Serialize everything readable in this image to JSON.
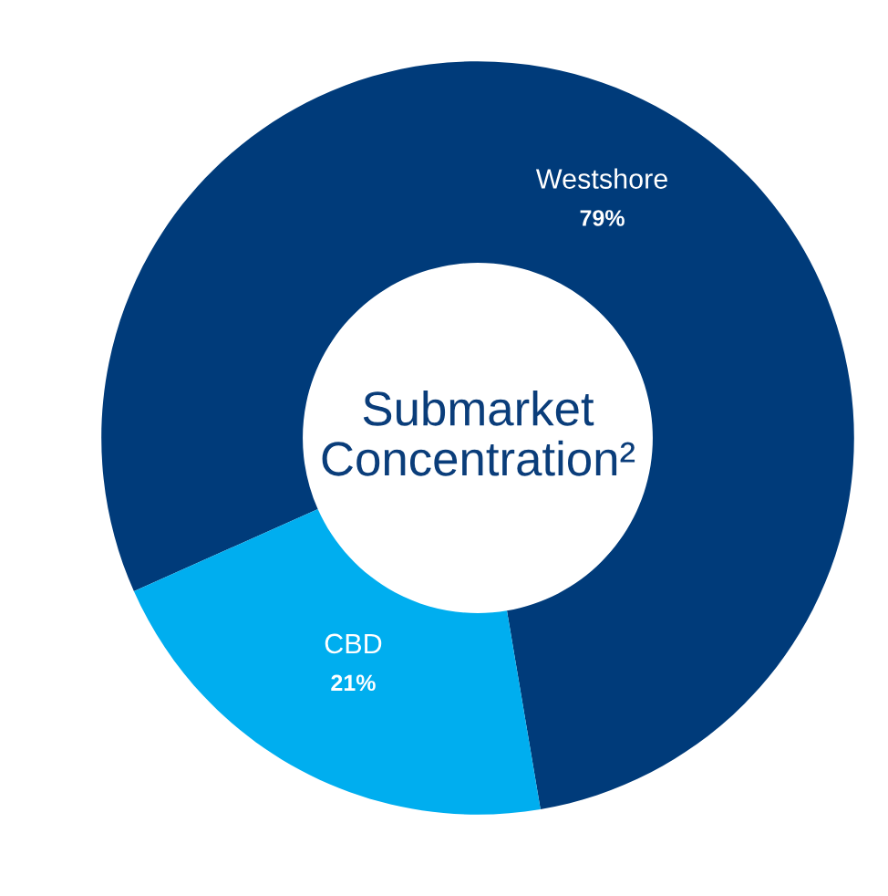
{
  "chart_data": {
    "type": "donut",
    "title": "Submarket Concentration²",
    "categories": [
      "Westshore",
      "CBD"
    ],
    "values": [
      79,
      21
    ],
    "colors": [
      "#003b7a",
      "#00aeef"
    ],
    "value_labels": [
      "79%",
      "21%"
    ],
    "legend": false
  }
}
